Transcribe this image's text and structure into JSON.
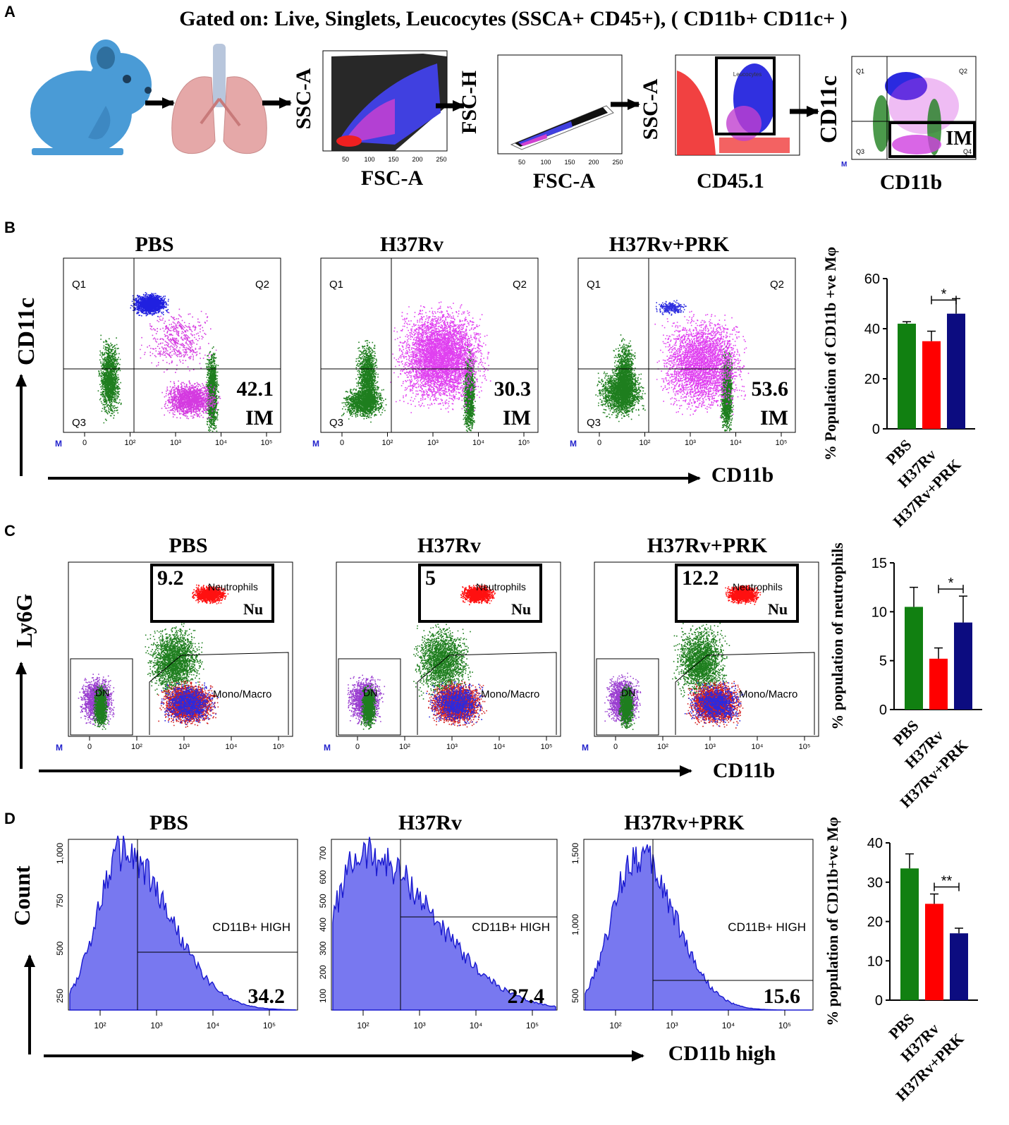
{
  "panel_letters": {
    "a": "A",
    "b": "B",
    "c": "C",
    "d": "D"
  },
  "panel_a": {
    "header": "Gated on: Live, Singlets, Leucocytes (SSCA+ CD45+), ( CD11b+  CD11c+ )",
    "plots": [
      {
        "y": "SSC-A",
        "x": "FSC-A",
        "ticks": [
          "50",
          "100",
          "150",
          "200",
          "250"
        ]
      },
      {
        "y": "FSC-H",
        "x": "FSC-A",
        "ticks": [
          "50",
          "100",
          "150",
          "200",
          "250"
        ]
      },
      {
        "y": "SSC-A",
        "x": "CD45.1",
        "gate": "Leucocytes"
      },
      {
        "y": "CD11c",
        "x": "CD11b",
        "gate": "IM"
      }
    ],
    "quadrants": {
      "q1": "Q1",
      "q2": "Q2",
      "q3": "Q3",
      "q4": "Q4"
    },
    "m_marker": "M"
  },
  "panel_b": {
    "y_axis": "CD11c",
    "x_axis": "CD11b",
    "gate_label": "IM",
    "plots": [
      {
        "title": "PBS",
        "value": "42.1"
      },
      {
        "title": "H37Rv",
        "value": "30.3"
      },
      {
        "title": "H37Rv+PRK",
        "value": "53.6"
      }
    ],
    "ticks": [
      "0",
      "10²",
      "10³",
      "10⁴",
      "10⁵"
    ]
  },
  "panel_c": {
    "y_axis": "Ly6G",
    "x_axis": "CD11b",
    "gate_nu": "Nu",
    "gate_neutrophils": "Neutrophils",
    "gate_dn": "DN",
    "gate_mono": "Mono/Macro",
    "plots": [
      {
        "title": "PBS",
        "value": "9.2"
      },
      {
        "title": "H37Rv",
        "value": "5"
      },
      {
        "title": "H37Rv+PRK",
        "value": "12.2"
      }
    ]
  },
  "panel_d": {
    "y_axis": "Count",
    "x_axis": "CD11b high",
    "gate_label": "CD11B+ HIGH",
    "plots": [
      {
        "title": "PBS",
        "value": "34.2",
        "yticks": [
          "1,000",
          "750",
          "500",
          "250"
        ]
      },
      {
        "title": "H37Rv",
        "value": "27.4",
        "yticks": [
          "700",
          "600",
          "500",
          "400",
          "300",
          "200",
          "100"
        ]
      },
      {
        "title": "H37Rv+PRK",
        "value": "15.6",
        "yticks": [
          "1,500",
          "1,000",
          "500"
        ]
      }
    ]
  },
  "bar_colors": {
    "PBS": "#118011",
    "H37Rv": "#ff0000",
    "H37Rv+PRK": "#0c0c80"
  },
  "chart_data": [
    {
      "type": "bar",
      "panel": "B",
      "ylabel": "% Population of CD11b +ve Mφ",
      "categories": [
        "PBS",
        "H37Rv",
        "H37Rv+PRK"
      ],
      "values": [
        42,
        35,
        46
      ],
      "errors": [
        0.8,
        4,
        6
      ],
      "ylim": [
        0,
        60
      ],
      "yticks": [
        0,
        20,
        40,
        60
      ],
      "significance": {
        "between": [
          "H37Rv",
          "H37Rv+PRK"
        ],
        "label": "*"
      }
    },
    {
      "type": "bar",
      "panel": "C",
      "ylabel": "% population of neutrophils",
      "categories": [
        "PBS",
        "H37Rv",
        "H37Rv+PRK"
      ],
      "values": [
        10.5,
        5.2,
        8.9
      ],
      "errors": [
        2,
        1.1,
        2.7
      ],
      "ylim": [
        0,
        15
      ],
      "yticks": [
        0,
        5,
        10,
        15
      ],
      "significance": {
        "between": [
          "H37Rv",
          "H37Rv+PRK"
        ],
        "label": "*"
      }
    },
    {
      "type": "bar",
      "panel": "D",
      "ylabel": "% population of CD11b+ve Mφ",
      "categories": [
        "PBS",
        "H37Rv",
        "H37Rv+PRK"
      ],
      "values": [
        33.5,
        24.5,
        17
      ],
      "errors": [
        3.7,
        2.5,
        1.3
      ],
      "ylim": [
        0,
        40
      ],
      "yticks": [
        0,
        10,
        20,
        30,
        40
      ],
      "significance": {
        "between": [
          "H37Rv",
          "H37Rv+PRK"
        ],
        "label": "**"
      }
    }
  ]
}
